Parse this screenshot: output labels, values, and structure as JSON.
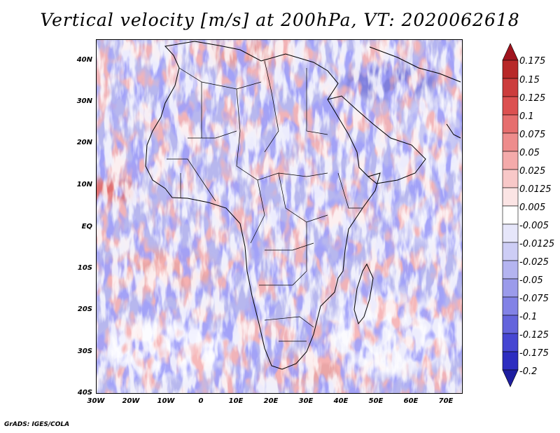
{
  "title": "Vertical velocity [m/s] at 200hPa, VT: 2020062618",
  "footer": "GrADS: IGES/COLA",
  "map": {
    "region": "Africa",
    "projection": "lat-lon",
    "lon_range": [
      -30,
      76
    ],
    "lat_range": [
      -40,
      45
    ],
    "lat_labels": [
      "40N",
      "30N",
      "20N",
      "10N",
      "EQ",
      "10S",
      "20S",
      "30S",
      "40S"
    ],
    "lon_labels": [
      "30W",
      "20W",
      "10W",
      "0",
      "10E",
      "20E",
      "30E",
      "40E",
      "50E",
      "60E",
      "70E"
    ]
  },
  "colorbar": {
    "levels": [
      "0.175",
      "0.15",
      "0.125",
      "0.1",
      "0.075",
      "0.05",
      "0.025",
      "0.0125",
      "0.005",
      "-0.005",
      "-0.0125",
      "-0.025",
      "-0.05",
      "-0.075",
      "-0.1",
      "-0.125",
      "-0.175",
      "-0.2"
    ],
    "colors": [
      "#a0141e",
      "#b82828",
      "#cc3c3c",
      "#dc5050",
      "#e66e6e",
      "#ee8c8c",
      "#f4aaaa",
      "#f8c8c8",
      "#fbe4e4",
      "#ffffff",
      "#e6e6fa",
      "#cdcdf5",
      "#b4b4f0",
      "#9b9beb",
      "#8282e6",
      "#6464dc",
      "#4646d2",
      "#2d2dc0",
      "#1e1ea0"
    ]
  }
}
